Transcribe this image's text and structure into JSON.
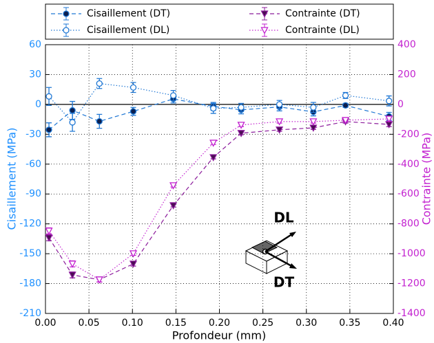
{
  "chart_data": {
    "type": "line",
    "xlabel": "Profondeur (mm)",
    "ylabel": "Cisaillement (MPa)",
    "y2label": "Contrainte (MPa)",
    "x": [
      0.004,
      0.031,
      0.062,
      0.101,
      0.147,
      0.193,
      0.225,
      0.269,
      0.308,
      0.345,
      0.395
    ],
    "series": [
      {
        "name": "Cisaillement (DT)",
        "color": "#1f77d4",
        "marker_color": "#0b1f4f",
        "marker": "circle",
        "filled": true,
        "linestyle": "dashed",
        "values": [
          -25.5,
          -6,
          -17,
          -7,
          5.5,
          -2,
          -5.5,
          -2.5,
          -7.5,
          -1,
          -12
        ],
        "errors": [
          7,
          9,
          7,
          4,
          4,
          4,
          4,
          4,
          4,
          2,
          4
        ]
      },
      {
        "name": "Cisaillement (DL)",
        "color": "#1f77d4",
        "marker_color": "#1f77d4",
        "marker": "circle",
        "filled": false,
        "linestyle": "dotted",
        "values": [
          8,
          -18,
          21,
          17,
          9,
          -4,
          -3,
          0,
          -3,
          9,
          3.5
        ],
        "errors": [
          9,
          9,
          5,
          5,
          5,
          5,
          4,
          4,
          5,
          3,
          5
        ]
      },
      {
        "name": "Contrainte (DT)",
        "color": "#8b1a9b",
        "marker_color": "#4a0d52",
        "marker": "triangle_down",
        "filled": true,
        "linestyle": "dashed",
        "axis": "y2",
        "values": [
          -893,
          -1142,
          -1174,
          -1068,
          -677,
          -355,
          -193,
          -170,
          -157,
          -115,
          -134
        ],
        "errors": [
          20,
          20,
          15,
          15,
          10,
          10,
          10,
          10,
          10,
          10,
          15
        ]
      },
      {
        "name": "Contrainte (DL)",
        "color": "#c21fcf",
        "marker_color": "#c21fcf",
        "marker": "triangle_down",
        "filled": false,
        "linestyle": "dotted",
        "axis": "y2",
        "values": [
          -847,
          -1068,
          -1174,
          -999,
          -543,
          -258,
          -138,
          -115,
          -115,
          -106,
          -97
        ],
        "errors": [
          20,
          20,
          15,
          12,
          10,
          10,
          10,
          10,
          10,
          10,
          15
        ]
      }
    ],
    "xlim": [
      0,
      0.4
    ],
    "xticks": [
      {
        "value": 0,
        "label": "0.00"
      },
      {
        "value": 0.05,
        "label": "0.05"
      },
      {
        "value": 0.1,
        "label": "0.10"
      },
      {
        "value": 0.15,
        "label": "0.15"
      },
      {
        "value": 0.2,
        "label": "0.20"
      },
      {
        "value": 0.25,
        "label": "0.25"
      },
      {
        "value": 0.3,
        "label": "0.30"
      },
      {
        "value": 0.35,
        "label": "0.35"
      },
      {
        "value": 0.4,
        "label": "0.40"
      }
    ],
    "ylim": [
      -210,
      60
    ],
    "yticks": [
      -210,
      -180,
      -150,
      -120,
      -90,
      -60,
      -30,
      0,
      30,
      60
    ],
    "y2lim": [
      -1400,
      400
    ],
    "y2ticks": [
      -1400,
      -1200,
      -1000,
      -800,
      -600,
      -400,
      -200,
      0,
      200,
      400
    ],
    "grid": true,
    "legend": "top-outside",
    "annotations": [
      "DL",
      "DT"
    ]
  }
}
